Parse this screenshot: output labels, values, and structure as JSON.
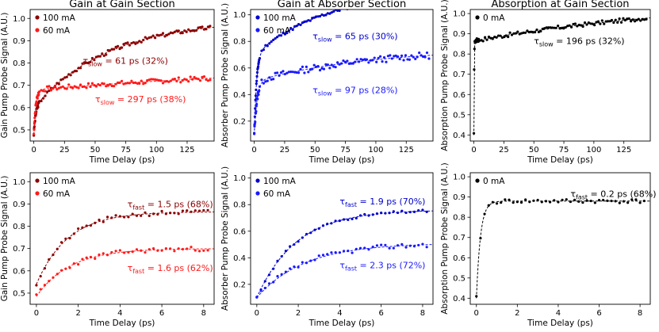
{
  "chart_data": [
    {
      "id": "p1",
      "type": "scatter",
      "title": "Gain at Gain Section",
      "xlabel": "Time Delay (ps)",
      "ylabel": "Gain Pump Probe Signal (A.U.)",
      "xlim": [
        -3,
        147
      ],
      "ylim": [
        0.45,
        1.04
      ],
      "xticks": [
        0,
        25,
        50,
        75,
        100,
        125
      ],
      "yticks": [
        0.5,
        0.6,
        0.7,
        0.8,
        0.9,
        1.0
      ],
      "series": [
        {
          "name": "100 mA",
          "color": "#8b0000",
          "fit": {
            "A": 0.48,
            "B": 0.6,
            "C": 0.82,
            "tf": 1.5,
            "ts": 61,
            "ws": 0.32
          },
          "noise": 0.009,
          "seed": 3
        },
        {
          "name": "60 mA",
          "color": "#ff1a1a",
          "fit": {
            "A": 0.48,
            "B": 0.68,
            "C": 0.755,
            "tf": 1.6,
            "ts": 297,
            "ws": 0.38
          },
          "noise": 0.011,
          "seed": 7
        }
      ],
      "annotations": [
        {
          "prefix": "τ",
          "sub": "slow",
          "suffix": " = 61 ps (32%)",
          "color": "#8b0000",
          "x": 40,
          "y": 0.797
        },
        {
          "prefix": "τ",
          "sub": "slow",
          "suffix": " = 297 ps (38%)",
          "color": "#ff1a1a",
          "x": 50,
          "y": 0.625
        }
      ]
    },
    {
      "id": "p2",
      "type": "scatter",
      "title": "Gain at Absorber Section",
      "xlabel": "Time Delay (ps)",
      "ylabel": "Absorber Pump Probe Signal (A.U.)",
      "xlim": [
        -3,
        147
      ],
      "ylim": [
        0.05,
        1.04
      ],
      "xticks": [
        0,
        25,
        50,
        75,
        100,
        125
      ],
      "yticks": [
        0.2,
        0.4,
        0.6,
        0.8,
        1.0
      ],
      "series": [
        {
          "name": "100 mA",
          "color": "#0000cc",
          "fit": {
            "A": 0.1,
            "B": 0.7,
            "C": 0.985,
            "tf": 1.9,
            "ts": 65,
            "ws": 0.3
          },
          "noise": 0.012,
          "seed": 11
        },
        {
          "name": "60 mA",
          "color": "#1a1aff",
          "fit": {
            "A": 0.1,
            "B": 0.5,
            "C": 0.64,
            "tf": 2.3,
            "ts": 97,
            "ws": 0.28
          },
          "noise": 0.025,
          "seed": 13
        }
      ],
      "annotations": [
        {
          "prefix": "τ",
          "sub": "slow",
          "suffix": " = 65 ps (30%)",
          "color": "#0000cc",
          "x": 48,
          "y": 0.815
        },
        {
          "prefix": "τ",
          "sub": "slow",
          "suffix": " = 97 ps (28%)",
          "color": "#1a1aff",
          "x": 48,
          "y": 0.41
        }
      ]
    },
    {
      "id": "p3",
      "type": "scatter",
      "title": "Absorption at Gain Section",
      "xlabel": "Time Delay (ps)",
      "ylabel": "Absorption Pump Probe Signal (A.U.)",
      "xlim": [
        -3,
        147
      ],
      "ylim": [
        0.37,
        1.02
      ],
      "xticks": [
        0,
        25,
        50,
        75,
        100,
        125
      ],
      "yticks": [
        0.4,
        0.5,
        0.6,
        0.7,
        0.8,
        0.9,
        1.0
      ],
      "series": [
        {
          "name": "0 mA",
          "color": "#000000",
          "fit": {
            "A": 0.4,
            "B": 0.865,
            "C": 0.985,
            "tf": 0.2,
            "ts": 196,
            "ws": 0.32
          },
          "noise": 0.01,
          "seed": 17
        }
      ],
      "annotations": [
        {
          "prefix": "τ",
          "sub": "slow",
          "suffix": " = 196 ps (32%)",
          "color": "#000000",
          "x": 50,
          "y": 0.85
        }
      ]
    },
    {
      "id": "p4",
      "type": "scatter",
      "title": "",
      "xlabel": "Time Delay (ps)",
      "ylabel": "Gain Pump Probe Signal (A.U.)",
      "xlim": [
        -0.3,
        8.5
      ],
      "ylim": [
        0.45,
        1.04
      ],
      "xticks": [
        0,
        2,
        4,
        6,
        8
      ],
      "yticks": [
        0.5,
        0.6,
        0.7,
        0.8,
        0.9,
        1.0
      ],
      "series": [
        {
          "name": "100 mA",
          "color": "#8b0000",
          "fit": {
            "A": 0.54,
            "B": 0.865,
            "tf": 1.5
          },
          "noise": 0.01,
          "seed": 21
        },
        {
          "name": "60 mA",
          "color": "#ff1a1a",
          "fit": {
            "A": 0.485,
            "B": 0.7,
            "tf": 1.6
          },
          "noise": 0.01,
          "seed": 23
        }
      ],
      "annotations": [
        {
          "prefix": "τ",
          "sub": "fast",
          "suffix": " = 1.5 ps (68%)",
          "color": "#8b0000",
          "x": 4.35,
          "y": 0.885
        },
        {
          "prefix": "τ",
          "sub": "fast",
          "suffix": " = 1.6 ps (62%)",
          "color": "#ff1a1a",
          "x": 4.35,
          "y": 0.6
        }
      ]
    },
    {
      "id": "p5",
      "type": "scatter",
      "title": "",
      "xlabel": "Time Delay (ps)",
      "ylabel": "Absorber Pump Probe Signal (A.U.)",
      "xlim": [
        -0.3,
        8.5
      ],
      "ylim": [
        0.05,
        1.04
      ],
      "xticks": [
        0,
        2,
        4,
        6,
        8
      ],
      "yticks": [
        0.2,
        0.4,
        0.6,
        0.8,
        1.0
      ],
      "series": [
        {
          "name": "100 mA",
          "color": "#0000cc",
          "fit": {
            "A": 0.1,
            "B": 0.76,
            "tf": 1.9
          },
          "noise": 0.01,
          "seed": 31
        },
        {
          "name": "60 mA",
          "color": "#1a1aff",
          "fit": {
            "A": 0.1,
            "B": 0.51,
            "tf": 2.3
          },
          "noise": 0.018,
          "seed": 37
        }
      ],
      "annotations": [
        {
          "prefix": "τ",
          "sub": "fast",
          "suffix": " = 1.9 ps (70%)",
          "color": "#0000cc",
          "x": 4.0,
          "y": 0.8
        },
        {
          "prefix": "τ",
          "sub": "fast",
          "suffix": " = 2.3 ps (72%)",
          "color": "#1a1aff",
          "x": 4.0,
          "y": 0.32
        }
      ]
    },
    {
      "id": "p6",
      "type": "scatter",
      "title": "",
      "xlabel": "Time Delay (ps)",
      "ylabel": "Absorption Pump Probe Signal (A.U.)",
      "xlim": [
        -0.3,
        8.5
      ],
      "ylim": [
        0.37,
        1.02
      ],
      "xticks": [
        0,
        2,
        4,
        6,
        8
      ],
      "yticks": [
        0.4,
        0.5,
        0.6,
        0.7,
        0.8,
        0.9,
        1.0
      ],
      "series": [
        {
          "name": "0 mA",
          "color": "#000000",
          "fit": {
            "A": 0.4,
            "B": 0.88,
            "tf": 0.2
          },
          "noise": 0.01,
          "seed": 41
        }
      ],
      "annotations": [
        {
          "prefix": "τ",
          "sub": "fast",
          "suffix": " = 0.2 ps (68%)",
          "color": "#000000",
          "x": 4.6,
          "y": 0.9
        }
      ]
    }
  ]
}
